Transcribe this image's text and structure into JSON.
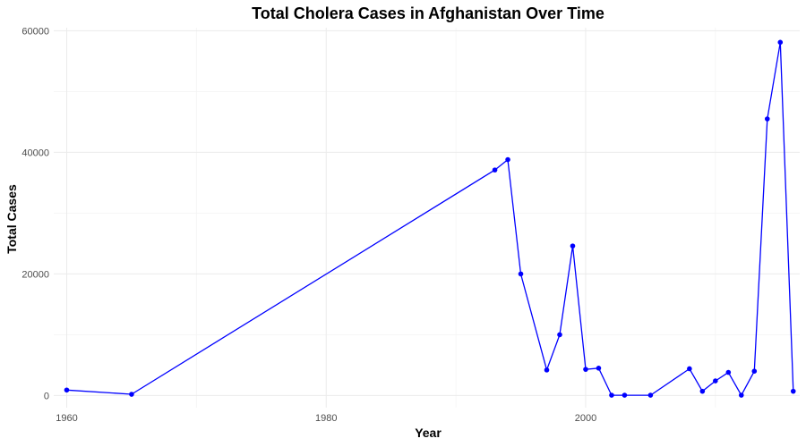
{
  "chart_data": {
    "type": "line",
    "title": "Total Cholera Cases in Afghanistan Over Time",
    "xlabel": "Year",
    "ylabel": "Total Cases",
    "xlim": [
      1959,
      2016.5
    ],
    "ylim": [
      -2000,
      60500
    ],
    "x_ticks": [
      1960,
      1980,
      2000
    ],
    "x_tick_labels": [
      "1960",
      "1980",
      "2000"
    ],
    "x_minor": [
      1970,
      1990,
      2010
    ],
    "y_ticks": [
      0,
      20000,
      40000,
      60000
    ],
    "y_tick_labels": [
      "0",
      "20000",
      "40000",
      "60000"
    ],
    "y_minor": [
      10000,
      30000,
      50000
    ],
    "grid": true,
    "legend": "none",
    "series": [
      {
        "color": "#0000ff",
        "x": [
          1960,
          1965,
          1993,
          1994,
          1995,
          1997,
          1998,
          1999,
          2000,
          2001,
          2002,
          2003,
          2005,
          2008,
          2009,
          2010,
          2011,
          2012,
          2013,
          2014,
          2015,
          2016
        ],
        "y": [
          900,
          200,
          37100,
          38800,
          20000,
          4200,
          10000,
          24600,
          4300,
          4500,
          50,
          50,
          50,
          4400,
          700,
          2400,
          3800,
          50,
          4000,
          45500,
          58100,
          700
        ]
      }
    ]
  }
}
